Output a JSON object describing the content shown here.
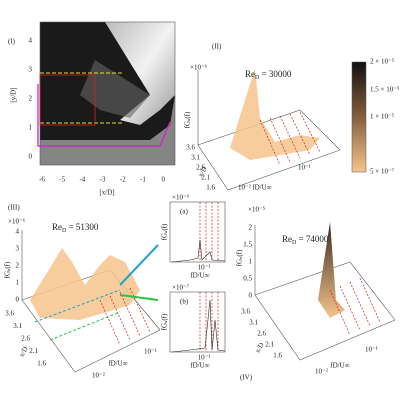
{
  "panel_1": {
    "label": "(I)",
    "y_axis_label": "[y/D]",
    "x_axis_label": "[x/D]",
    "x_ticks": [
      -6,
      -5,
      -4,
      -3,
      -2,
      -1,
      0
    ],
    "y_ticks": [
      0,
      1,
      2,
      3,
      4
    ]
  },
  "panel_2": {
    "label": "(II)",
    "scale": "×10⁻⁶",
    "annotation": {
      "text": "Re",
      "subscript": "D",
      "rest": "= 30000"
    },
    "z_label": "fGᵤ(f)",
    "y_label": "x/D",
    "x_label": "fD/U∞",
    "y_ticks": [
      "3.6",
      "3.1",
      "2.6",
      "2.1",
      "1.6"
    ],
    "x_ticks": [
      "10⁻²",
      "10⁻¹"
    ]
  },
  "colorbar": {
    "ticks": [
      "2 × 10⁻⁵",
      "1.5 × 10⁻⁵",
      "1 × 10⁻⁵",
      "5 × 10⁻⁷"
    ]
  },
  "panel_3": {
    "label": "(III)",
    "scale": "×10⁻⁶",
    "annotation": {
      "text": "Re",
      "subscript": "D",
      "rest": "= 51300"
    },
    "z_label": "fGᵤ(f)",
    "z_ticks": [
      4,
      3,
      2,
      1,
      0
    ],
    "y_label": "x/D",
    "x_label": "fD/U∞",
    "y_ticks": [
      "3.6",
      "3.1",
      "2.6",
      "2.1",
      "1.6"
    ],
    "x_ticks": [
      "10⁻²",
      "10⁻¹"
    ]
  },
  "inset_a": {
    "label": "(a)",
    "scale": "×10⁻⁶",
    "y_label": "fGᵤ(f)",
    "x_label": "fD/U∞",
    "x_tick": "10⁻¹"
  },
  "inset_b": {
    "label": "(b)",
    "scale": "×10⁻⁷",
    "y_label": "fGᵤ(f)",
    "x_label": "fD/U∞",
    "x_tick": "10⁻¹"
  },
  "panel_4": {
    "label": "(IV)",
    "scale": "×10⁻⁵",
    "annotation": {
      "text": "Re",
      "subscript": "D",
      "rest": "= 74000"
    },
    "z_label": "fGᵤ(f)",
    "z_ticks": [
      2,
      1.5,
      1,
      0.5,
      0
    ],
    "y_label": "x/D",
    "x_label": "fD/U∞",
    "y_ticks": [
      "3.6",
      "3.1",
      "2.6",
      "2.1",
      "1.6"
    ],
    "x_ticks": [
      "10⁻²",
      "10⁻¹"
    ]
  }
}
